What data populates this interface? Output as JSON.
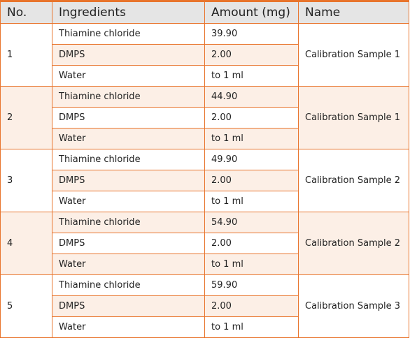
{
  "headers": {
    "no": "No.",
    "ingredients": "Ingredients",
    "amount": "Amount (mg)",
    "name": "Name"
  },
  "groups": [
    {
      "no": "1",
      "name": "Calibration Sample 1",
      "rows": [
        {
          "ingredient": "Thiamine chloride",
          "amount": "39.90"
        },
        {
          "ingredient": "DMPS",
          "amount": "2.00"
        },
        {
          "ingredient": "Water",
          "amount": "to 1 ml"
        }
      ]
    },
    {
      "no": "2",
      "name": "Calibration Sample 1",
      "rows": [
        {
          "ingredient": "Thiamine chloride",
          "amount": "44.90"
        },
        {
          "ingredient": "DMPS",
          "amount": "2.00"
        },
        {
          "ingredient": "Water",
          "amount": "to 1 ml"
        }
      ]
    },
    {
      "no": "3",
      "name": "Calibration Sample 2",
      "rows": [
        {
          "ingredient": "Thiamine chloride",
          "amount": "49.90"
        },
        {
          "ingredient": "DMPS",
          "amount": "2.00"
        },
        {
          "ingredient": "Water",
          "amount": "to 1 ml"
        }
      ]
    },
    {
      "no": "4",
      "name": "Calibration Sample 2",
      "rows": [
        {
          "ingredient": "Thiamine chloride",
          "amount": "54.90"
        },
        {
          "ingredient": "DMPS",
          "amount": "2.00"
        },
        {
          "ingredient": "Water",
          "amount": "to 1 ml"
        }
      ]
    },
    {
      "no": "5",
      "name": "Calibration Sample 3",
      "rows": [
        {
          "ingredient": "Thiamine chloride",
          "amount": "59.90"
        },
        {
          "ingredient": "DMPS",
          "amount": "2.00"
        },
        {
          "ingredient": "Water",
          "amount": "to 1 ml"
        }
      ]
    }
  ]
}
